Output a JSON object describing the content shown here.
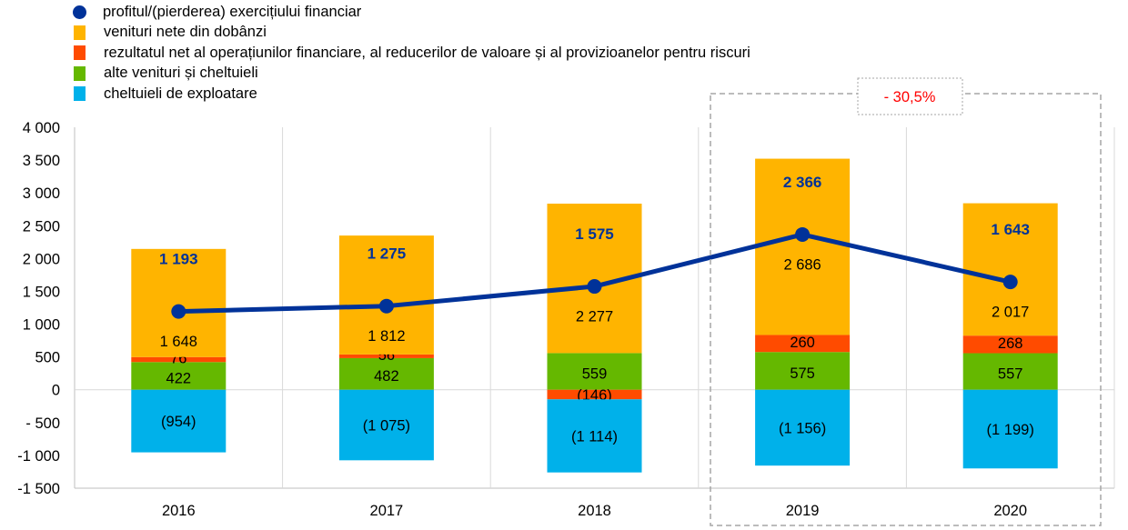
{
  "chart_data": {
    "type": "bar",
    "stacked": true,
    "categories": [
      "2016",
      "2017",
      "2018",
      "2019",
      "2020"
    ],
    "ylim": [
      -1500,
      4000
    ],
    "yticks": [
      4000,
      3500,
      3000,
      2500,
      2000,
      1500,
      1000,
      500,
      0,
      -500,
      -1000,
      -1500
    ],
    "ytick_labels": [
      "4 000",
      "3 500",
      "3 000",
      "2 500",
      "2 000",
      "1 500",
      "1 000",
      "500",
      "0",
      "- 500",
      "-1 000",
      "-1 500"
    ],
    "grid": "vertical",
    "legend_position": "top-left",
    "series": [
      {
        "name": "profitul/(pierderea) exercițiului financiar",
        "type": "line",
        "color": "#003299",
        "values": [
          1193,
          1275,
          1575,
          2366,
          1643
        ]
      },
      {
        "name": "venituri nete din dobânzi",
        "type": "bar",
        "color": "#FFB400",
        "values": [
          1648,
          1812,
          2277,
          2686,
          2017
        ]
      },
      {
        "name": "rezultatul net al operațiunilor financiare, al reducerilor de valoare și al provizioanelor pentru riscuri",
        "type": "bar",
        "color": "#FF4B00",
        "values": [
          76,
          56,
          -146,
          260,
          268
        ]
      },
      {
        "name": "alte venituri și cheltuieli",
        "type": "bar",
        "color": "#65B800",
        "values": [
          422,
          482,
          559,
          575,
          557
        ]
      },
      {
        "name": "cheltuieli de exploatare",
        "type": "bar",
        "color": "#00B1EA",
        "values": [
          -954,
          -1075,
          -1114,
          -1156,
          -1199
        ]
      }
    ],
    "annotation": {
      "text": "- 30,5%",
      "color": "#FF0000",
      "applies_to": [
        "2019",
        "2020"
      ]
    }
  }
}
